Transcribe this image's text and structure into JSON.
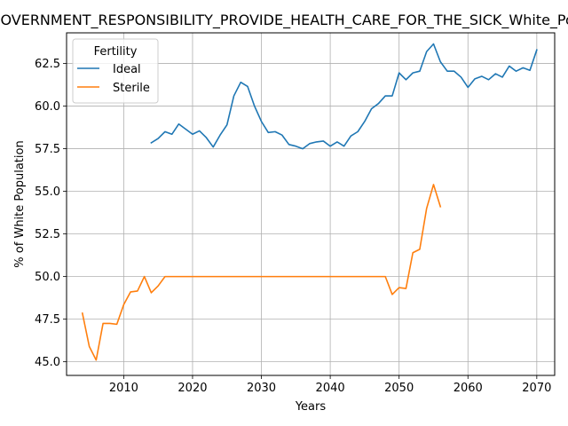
{
  "chart_data": {
    "type": "line",
    "title": "GOVERNMENT_RESPONSIBILITY_PROVIDE_HEALTH_CARE_FOR_THE_SICK_White_Population",
    "xlabel": "Years",
    "ylabel": "% of White Population",
    "xlim": [
      2001.7,
      2072.6
    ],
    "ylim": [
      44.2,
      64.3
    ],
    "xticks": [
      2010,
      2020,
      2030,
      2040,
      2050,
      2060,
      2070
    ],
    "yticks": [
      45.0,
      47.5,
      50.0,
      52.5,
      55.0,
      57.5,
      60.0,
      62.5
    ],
    "ytick_labels": [
      "45.0",
      "47.5",
      "50.0",
      "52.5",
      "55.0",
      "57.5",
      "60.0",
      "62.5"
    ],
    "grid": true,
    "legend": {
      "title": "Fertility",
      "placement": "top-left"
    },
    "series": [
      {
        "name": "Ideal",
        "color": "#1f77b4",
        "x": [
          2014,
          2015,
          2016,
          2017,
          2018,
          2019,
          2020,
          2021,
          2022,
          2023,
          2024,
          2025,
          2026,
          2027,
          2028,
          2029,
          2030,
          2031,
          2032,
          2033,
          2034,
          2035,
          2036,
          2037,
          2038,
          2039,
          2040,
          2041,
          2042,
          2043,
          2044,
          2045,
          2046,
          2047,
          2048,
          2049,
          2050,
          2051,
          2052,
          2053,
          2054,
          2055,
          2056,
          2057,
          2058,
          2059,
          2060,
          2061,
          2062,
          2063,
          2064,
          2065,
          2066,
          2067,
          2068,
          2069,
          2070
        ],
        "y": [
          57.85,
          58.1,
          58.5,
          58.35,
          58.95,
          58.65,
          58.35,
          58.55,
          58.15,
          57.6,
          58.3,
          58.9,
          60.6,
          61.4,
          61.15,
          60.0,
          59.1,
          58.45,
          58.5,
          58.3,
          57.75,
          57.65,
          57.5,
          57.8,
          57.9,
          57.95,
          57.65,
          57.9,
          57.65,
          58.25,
          58.5,
          59.1,
          59.85,
          60.15,
          60.6,
          60.6,
          61.95,
          61.55,
          61.95,
          62.05,
          63.2,
          63.65,
          62.6,
          62.05,
          62.05,
          61.7,
          61.1,
          61.6,
          61.75,
          61.55,
          61.9,
          61.7,
          62.35,
          62.05,
          62.25,
          62.1,
          63.3
        ]
      },
      {
        "name": "Sterile",
        "color": "#ff7f0e",
        "x": [
          2004,
          2005,
          2006,
          2007,
          2008,
          2009,
          2010,
          2011,
          2012,
          2013,
          2014,
          2015,
          2016,
          2017,
          2018,
          2019,
          2020,
          2021,
          2022,
          2023,
          2024,
          2025,
          2026,
          2027,
          2028,
          2029,
          2030,
          2031,
          2032,
          2033,
          2034,
          2035,
          2036,
          2037,
          2038,
          2039,
          2040,
          2041,
          2042,
          2043,
          2044,
          2045,
          2046,
          2047,
          2048,
          2049,
          2050,
          2051,
          2052,
          2053,
          2054,
          2055,
          2056
        ],
        "y": [
          47.85,
          45.9,
          45.1,
          47.25,
          47.25,
          47.2,
          48.35,
          49.1,
          49.15,
          50.0,
          49.05,
          49.45,
          50.0,
          50.0,
          50.0,
          50.0,
          50.0,
          50.0,
          50.0,
          50.0,
          50.0,
          50.0,
          50.0,
          50.0,
          50.0,
          50.0,
          50.0,
          50.0,
          50.0,
          50.0,
          50.0,
          50.0,
          50.0,
          50.0,
          50.0,
          50.0,
          50.0,
          50.0,
          50.0,
          50.0,
          50.0,
          50.0,
          50.0,
          50.0,
          50.0,
          48.95,
          49.35,
          49.3,
          51.4,
          51.6,
          54.0,
          55.4,
          54.1
        ]
      }
    ]
  }
}
